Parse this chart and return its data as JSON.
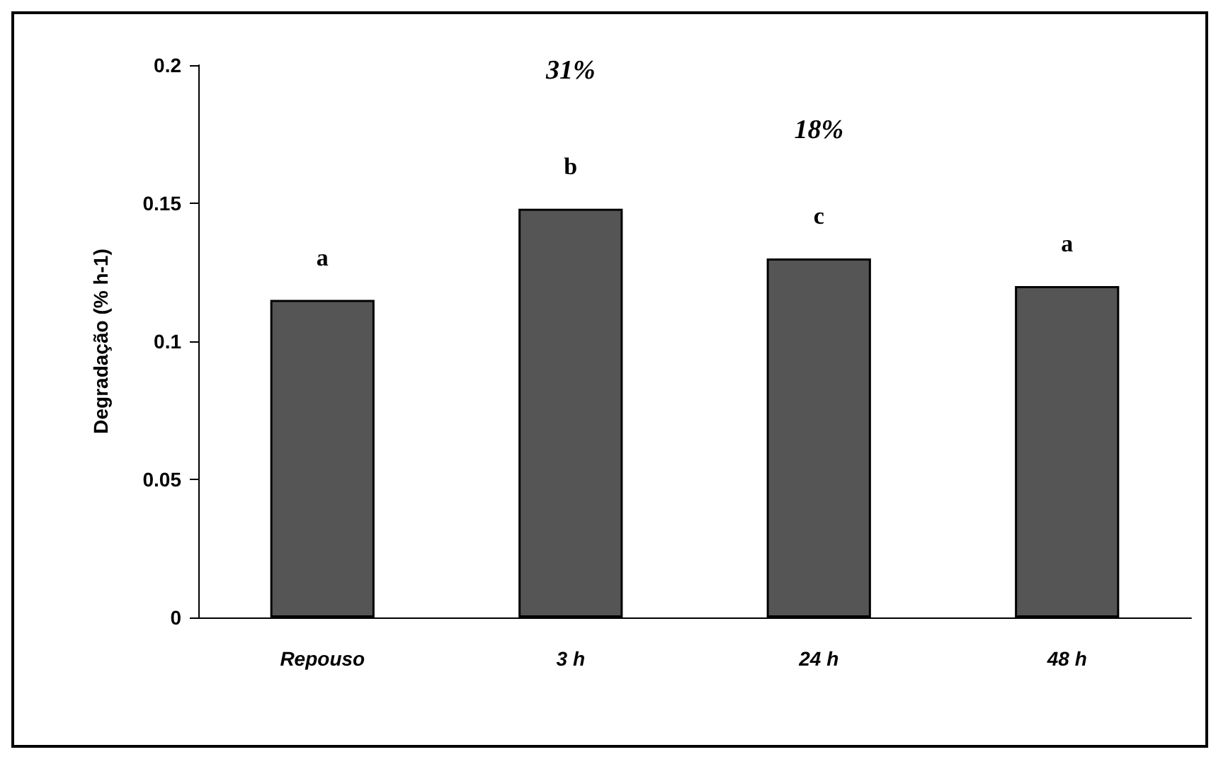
{
  "chart_data": {
    "type": "bar",
    "ylabel": "Degradação (% h-1)",
    "categories": [
      "Repouso",
      "3 h",
      "24 h",
      "48 h"
    ],
    "values": [
      0.115,
      0.148,
      0.13,
      0.12
    ],
    "color": "#555555",
    "ylim": [
      0,
      0.2
    ],
    "yticks": [
      0,
      0.05,
      0.1,
      0.15,
      0.2
    ],
    "grid": false,
    "annotations": [
      "a",
      "b",
      "c",
      "a",
      "31%",
      "18%"
    ]
  }
}
